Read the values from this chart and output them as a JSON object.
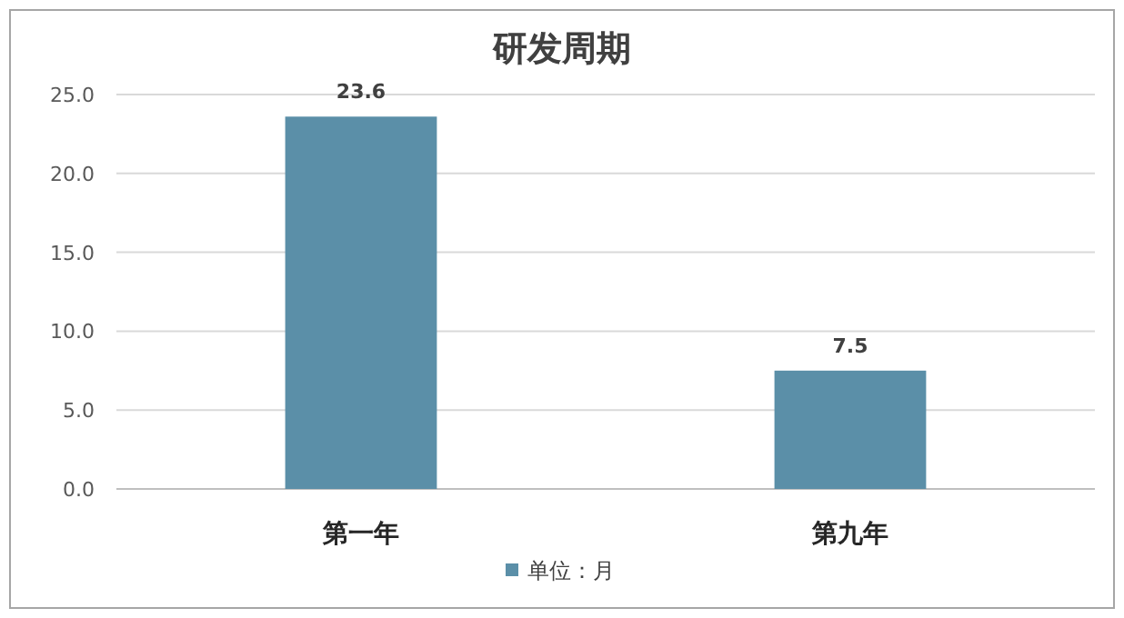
{
  "chart_data": {
    "type": "bar",
    "title": "研发周期",
    "categories": [
      "第一年",
      "第九年"
    ],
    "series": [
      {
        "name": "单位：月",
        "color": "#5b8fa8",
        "values": [
          23.6,
          7.5
        ]
      }
    ],
    "ylim": [
      0,
      25
    ],
    "yticks": [
      {
        "value": 0,
        "label": "0.0"
      },
      {
        "value": 5,
        "label": "5.0"
      },
      {
        "value": 10,
        "label": "10.0"
      },
      {
        "value": 15,
        "label": "15.0"
      },
      {
        "value": 20,
        "label": "20.0"
      },
      {
        "value": 25,
        "label": "25.0"
      }
    ],
    "grid": "y",
    "legend": "bottom",
    "data_labels": true
  }
}
